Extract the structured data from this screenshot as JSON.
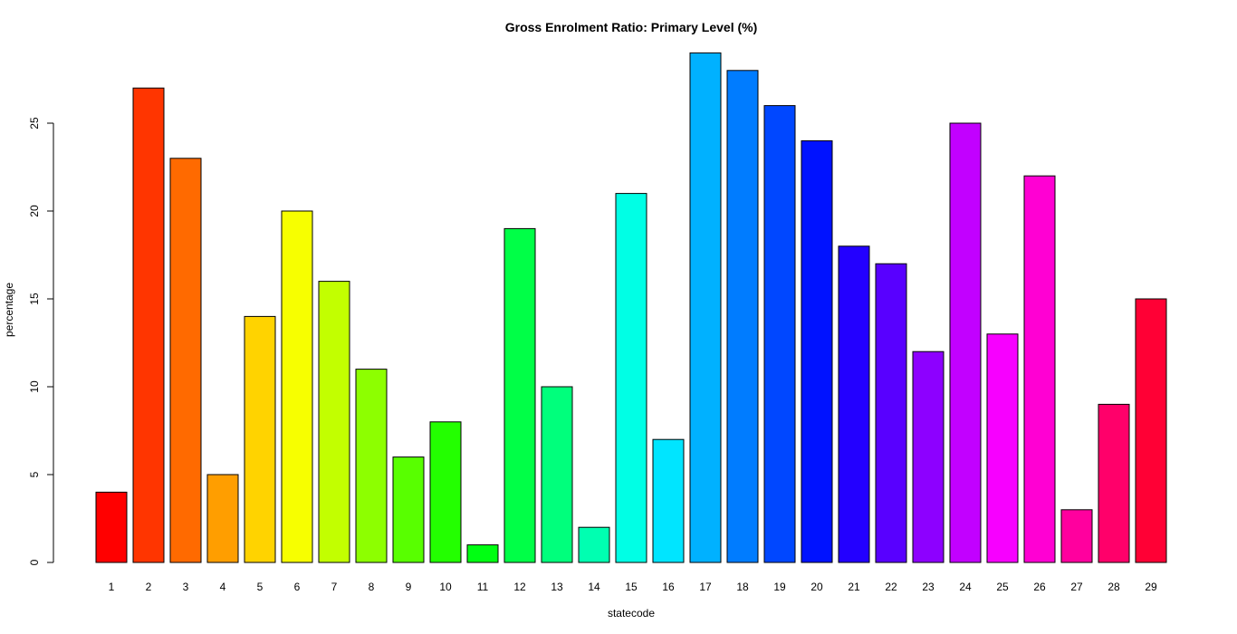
{
  "chart_data": {
    "type": "bar",
    "title": "Gross Enrolment Ratio: Primary Level (%)",
    "xlabel": "statecode",
    "ylabel": "percentage",
    "categories": [
      "1",
      "2",
      "3",
      "4",
      "5",
      "6",
      "7",
      "8",
      "9",
      "10",
      "11",
      "12",
      "13",
      "14",
      "15",
      "16",
      "17",
      "18",
      "19",
      "20",
      "21",
      "22",
      "23",
      "24",
      "25",
      "26",
      "27",
      "28",
      "29"
    ],
    "values": [
      4,
      27,
      23,
      5,
      14,
      20,
      16,
      11,
      6,
      8,
      1,
      19,
      10,
      2,
      21,
      7,
      29,
      28,
      26,
      24,
      18,
      17,
      12,
      25,
      13,
      22,
      3,
      9,
      15
    ],
    "colors": [
      "#FF0000",
      "#FF3500",
      "#FF6A00",
      "#FF9E00",
      "#FFD300",
      "#F7FF00",
      "#C2FF00",
      "#8DFF00",
      "#58FF00",
      "#23FF00",
      "#00FF12",
      "#00FF47",
      "#00FF7C",
      "#00FFB1",
      "#00FFE5",
      "#00E5FF",
      "#00B1FF",
      "#007CFF",
      "#0047FF",
      "#0012FF",
      "#2300FF",
      "#5800FF",
      "#8D00FF",
      "#C200FF",
      "#F700FF",
      "#FF00D3",
      "#FF009E",
      "#FF006A",
      "#FF0035"
    ],
    "yticks": [
      0,
      5,
      10,
      15,
      20,
      25
    ],
    "ylim": [
      0,
      29
    ],
    "grid": false,
    "legend": "none"
  }
}
